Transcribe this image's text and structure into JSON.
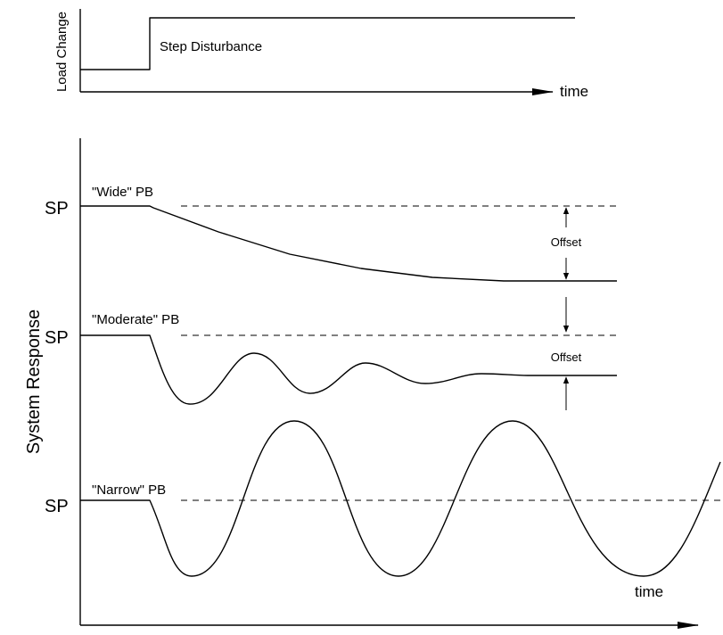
{
  "top_panel": {
    "y_label": "Load Change",
    "x_label": "time",
    "disturbance_label": "Step Disturbance"
  },
  "bottom_panel": {
    "y_label": "System Response",
    "x_label": "time",
    "traces": [
      {
        "sp_label": "SP",
        "pb_label": "\"Wide\" PB"
      },
      {
        "sp_label": "SP",
        "pb_label": "\"Moderate\" PB"
      },
      {
        "sp_label": "SP",
        "pb_label": "\"Narrow\" PB"
      }
    ],
    "offset_labels": [
      "Offset",
      "Offset"
    ]
  }
}
